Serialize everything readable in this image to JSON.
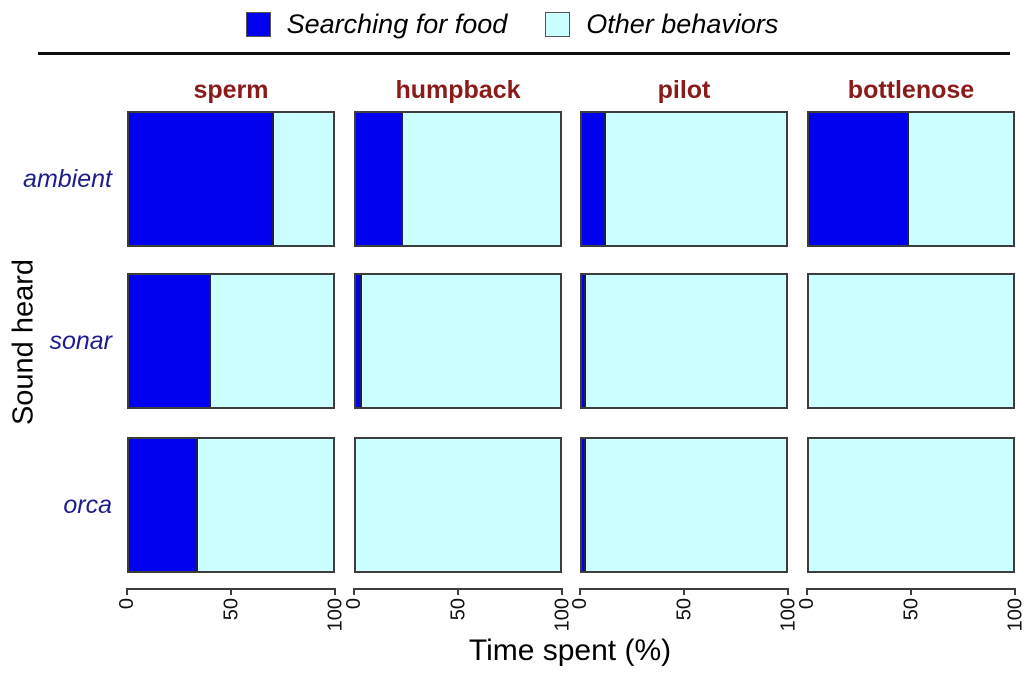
{
  "legend": {
    "items": [
      {
        "label": "Searching for food",
        "color": "#0000EE",
        "icon": "filled-square"
      },
      {
        "label": "Other behaviors",
        "color": "#CCFFFF",
        "icon": "filled-square"
      }
    ]
  },
  "chart_data": {
    "type": "bar",
    "variant": "horizontal_stacked_percent_facets",
    "title": "",
    "xlabel": "Time spent (%)",
    "ylabel": "Sound heard",
    "facet_columns": [
      "sperm",
      "humpback",
      "pilot",
      "bottlenose"
    ],
    "facet_rows": [
      "ambient",
      "sonar",
      "orca"
    ],
    "series_names": [
      "Searching for food",
      "Other behaviors"
    ],
    "colors": {
      "searching_for_food": "#0000EE",
      "other_behaviors": "#CCFFFF",
      "facet_header_text": "#8B1A1A",
      "row_label_text": "#1C1C8C"
    },
    "searching_pct": [
      [
        71,
        23,
        12,
        49
      ],
      [
        40,
        3,
        2,
        0
      ],
      [
        34,
        0,
        2,
        0
      ]
    ],
    "other_pct": [
      [
        29,
        77,
        88,
        51
      ],
      [
        60,
        97,
        98,
        100
      ],
      [
        66,
        100,
        98,
        100
      ]
    ],
    "x_ticks": [
      0,
      50,
      100
    ],
    "xlim": [
      0,
      100
    ],
    "legend_position": "top",
    "grid": false
  }
}
